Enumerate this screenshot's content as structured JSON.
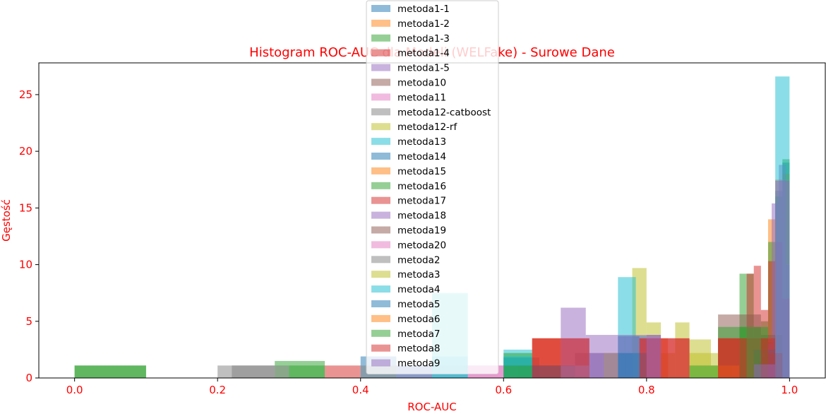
{
  "chart_data": {
    "type": "bar",
    "title": "Histogram ROC-AUC dla Modeli (WELFake) - Surowe Dane",
    "xlabel": "ROC-AUC",
    "ylabel": "Gęstość",
    "xlim": [
      -0.05,
      1.05
    ],
    "ylim": [
      0,
      27.8
    ],
    "x_ticks": [
      "0.0",
      "0.2",
      "0.4",
      "0.6",
      "0.8",
      "1.0"
    ],
    "y_ticks": [
      "0",
      "5",
      "10",
      "15",
      "20",
      "25"
    ],
    "legend_position": "upper center",
    "bar_alpha": 0.5,
    "series": [
      {
        "name": "metoda1-1",
        "color": "#1f77b4",
        "bins": [
          [
            0.96,
            0.97,
            1.8
          ],
          [
            0.97,
            0.98,
            3.2
          ],
          [
            0.98,
            0.99,
            16.5
          ],
          [
            0.99,
            1.0,
            19.0
          ]
        ]
      },
      {
        "name": "metoda1-2",
        "color": "#ff7f0e",
        "bins": [
          [
            0.95,
            0.96,
            1.5
          ],
          [
            0.96,
            0.97,
            3.5
          ],
          [
            0.97,
            0.98,
            14.0
          ],
          [
            0.98,
            0.99,
            17.5
          ],
          [
            0.99,
            1.0,
            18.0
          ]
        ]
      },
      {
        "name": "metoda1-3",
        "color": "#2ca02c",
        "bins": [
          [
            0.93,
            0.94,
            9.2
          ],
          [
            0.94,
            0.95,
            9.2
          ],
          [
            0.95,
            0.96,
            4.5
          ],
          [
            0.96,
            0.97,
            5.0
          ],
          [
            0.97,
            0.98,
            12.0
          ],
          [
            0.98,
            0.99,
            16.0
          ],
          [
            0.99,
            1.0,
            19.3
          ]
        ]
      },
      {
        "name": "metoda1-4",
        "color": "#d62728",
        "bins": [
          [
            0.94,
            0.95,
            9.2
          ],
          [
            0.95,
            0.96,
            9.9
          ],
          [
            0.96,
            0.97,
            6.0
          ],
          [
            0.97,
            0.98,
            10.3
          ],
          [
            0.98,
            0.99,
            12.0
          ],
          [
            0.99,
            1.0,
            7.0
          ]
        ]
      },
      {
        "name": "metoda1-5",
        "color": "#9467bd",
        "bins": [
          [
            0.955,
            0.965,
            1.5
          ],
          [
            0.965,
            0.975,
            3.0
          ],
          [
            0.975,
            0.985,
            15.4
          ],
          [
            0.985,
            0.995,
            18.8
          ],
          [
            0.995,
            1.0,
            10.0
          ]
        ]
      },
      {
        "name": "metoda10",
        "color": "#8c564b",
        "bins": [
          [
            0.9,
            0.93,
            5.6
          ],
          [
            0.93,
            0.96,
            5.6
          ],
          [
            0.96,
            0.99,
            3.8
          ]
        ]
      },
      {
        "name": "metoda11",
        "color": "#e377c2",
        "bins": [
          [
            0.45,
            0.55,
            1.1
          ],
          [
            0.55,
            0.65,
            1.1
          ]
        ]
      },
      {
        "name": "metoda12-catboost",
        "color": "#7f7f7f",
        "bins": [
          [
            0.2,
            0.28,
            1.1
          ],
          [
            0.62,
            0.7,
            1.1
          ],
          [
            0.7,
            0.78,
            2.2
          ]
        ]
      },
      {
        "name": "metoda12-rf",
        "color": "#bcbd22",
        "bins": [
          [
            0.78,
            0.8,
            9.7
          ],
          [
            0.8,
            0.82,
            4.9
          ],
          [
            0.82,
            0.84,
            2.2
          ],
          [
            0.84,
            0.86,
            4.9
          ],
          [
            0.86,
            0.89,
            3.4
          ],
          [
            0.89,
            0.92,
            1.1
          ]
        ]
      },
      {
        "name": "metoda13",
        "color": "#17becf",
        "bins": [
          [
            0.5,
            0.55,
            7.5
          ],
          [
            0.6,
            0.64,
            2.5
          ],
          [
            0.76,
            0.785,
            8.9
          ],
          [
            0.785,
            0.8,
            3.7
          ],
          [
            0.98,
            1.0,
            26.6
          ]
        ]
      },
      {
        "name": "metoda14",
        "color": "#1f77b4",
        "bins": [
          [
            0.4,
            0.45,
            1.9
          ],
          [
            0.6,
            0.65,
            1.8
          ],
          [
            0.76,
            0.79,
            3.7
          ],
          [
            0.95,
            0.98,
            2.5
          ]
        ]
      },
      {
        "name": "metoda15",
        "color": "#ff7f0e",
        "bins": [
          [
            0.64,
            0.68,
            3.5
          ],
          [
            0.79,
            0.83,
            3.5
          ],
          [
            0.9,
            0.94,
            3.5
          ]
        ]
      },
      {
        "name": "metoda16",
        "color": "#2ca02c",
        "bins": [
          [
            0.0,
            0.1,
            1.1
          ],
          [
            0.28,
            0.35,
            1.5
          ],
          [
            0.6,
            0.64,
            2.2
          ],
          [
            0.9,
            0.94,
            4.5
          ]
        ]
      },
      {
        "name": "metoda17",
        "color": "#d62728",
        "bins": [
          [
            0.64,
            0.72,
            3.5
          ],
          [
            0.79,
            0.86,
            3.5
          ],
          [
            0.9,
            0.97,
            3.5
          ]
        ]
      },
      {
        "name": "metoda18",
        "color": "#9467bd",
        "bins": [
          [
            0.68,
            0.715,
            6.2
          ],
          [
            0.715,
            0.77,
            3.8
          ],
          [
            0.77,
            0.82,
            3.8
          ]
        ]
      },
      {
        "name": "metoda19",
        "color": "#8c564b",
        "bins": [
          [
            0.64,
            0.7,
            1.1
          ],
          [
            0.95,
            0.99,
            2.2
          ]
        ]
      },
      {
        "name": "metoda20",
        "color": "#e377c2",
        "bins": [
          [
            0.55,
            0.6,
            1.1
          ]
        ]
      },
      {
        "name": "metoda2",
        "color": "#7f7f7f",
        "bins": [
          [
            0.22,
            0.3,
            1.1
          ],
          [
            0.4,
            0.45,
            1.1
          ]
        ]
      },
      {
        "name": "metoda3",
        "color": "#bcbd22",
        "bins": [
          [
            0.74,
            0.76,
            2.2
          ],
          [
            0.86,
            0.9,
            2.2
          ]
        ]
      },
      {
        "name": "metoda4",
        "color": "#17becf",
        "bins": [
          [
            0.5,
            0.55,
            1.9
          ],
          [
            0.6,
            0.64,
            1.9
          ]
        ]
      },
      {
        "name": "metoda5",
        "color": "#1f77b4",
        "bins": [
          [
            0.45,
            0.5,
            1.1
          ],
          [
            0.64,
            0.7,
            1.1
          ],
          [
            0.76,
            0.8,
            2.2
          ]
        ]
      },
      {
        "name": "metoda6",
        "color": "#ff7f0e",
        "bins": [
          [
            0.68,
            0.72,
            1.1
          ],
          [
            0.9,
            0.93,
            1.1
          ]
        ]
      },
      {
        "name": "metoda7",
        "color": "#2ca02c",
        "bins": [
          [
            0.0,
            0.1,
            1.1
          ],
          [
            0.3,
            0.35,
            1.1
          ],
          [
            0.6,
            0.64,
            1.1
          ],
          [
            0.86,
            0.9,
            1.1
          ],
          [
            0.93,
            0.97,
            4.5
          ]
        ]
      },
      {
        "name": "metoda8",
        "color": "#d62728",
        "bins": [
          [
            0.35,
            0.4,
            1.1
          ],
          [
            0.64,
            0.72,
            3.5
          ],
          [
            0.79,
            0.86,
            3.5
          ],
          [
            0.9,
            0.94,
            3.5
          ],
          [
            0.96,
            0.98,
            3.5
          ]
        ]
      },
      {
        "name": "metoda9",
        "color": "#9467bd",
        "bins": [
          [
            0.68,
            0.72,
            1.1
          ],
          [
            0.72,
            0.76,
            2.2
          ],
          [
            0.8,
            0.82,
            3.8
          ],
          [
            0.95,
            0.98,
            1.2
          ],
          [
            0.98,
            1.0,
            17.4
          ]
        ]
      }
    ]
  }
}
